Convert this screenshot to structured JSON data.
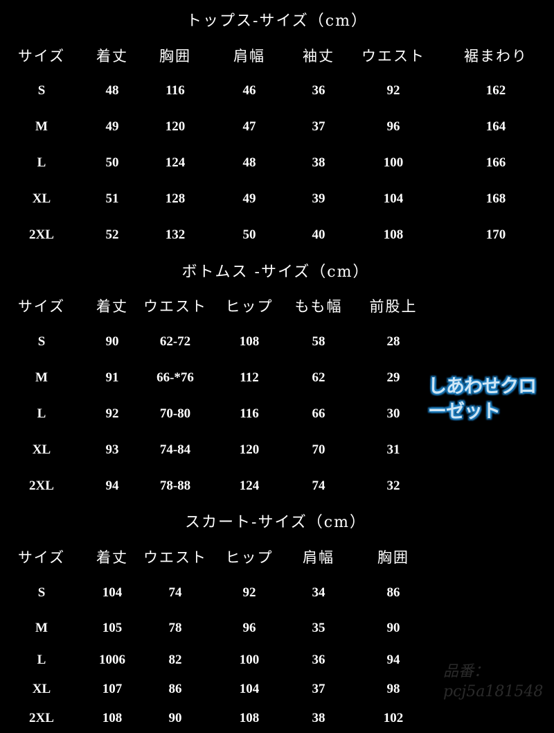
{
  "sections": [
    {
      "title": "トップス-サイズ（cm）",
      "headers": [
        "サイズ",
        "着丈",
        "胸囲",
        "肩幅",
        "袖丈",
        "ウエスト",
        "裾まわり"
      ],
      "rows": [
        [
          "S",
          "48",
          "116",
          "46",
          "36",
          "92",
          "162"
        ],
        [
          "M",
          "49",
          "120",
          "47",
          "37",
          "96",
          "164"
        ],
        [
          "L",
          "50",
          "124",
          "48",
          "38",
          "100",
          "166"
        ],
        [
          "XL",
          "51",
          "128",
          "49",
          "39",
          "104",
          "168"
        ],
        [
          "2XL",
          "52",
          "132",
          "50",
          "40",
          "108",
          "170"
        ]
      ]
    },
    {
      "title": "ボトムス -サイズ（cm）",
      "headers": [
        "サイズ",
        "着丈",
        "ウエスト",
        "ヒップ",
        "もも幅",
        "前股上"
      ],
      "rows": [
        [
          "S",
          "90",
          "62-72",
          "108",
          "58",
          "28"
        ],
        [
          "M",
          "91",
          "66-*76",
          "112",
          "62",
          "29"
        ],
        [
          "L",
          "92",
          "70-80",
          "116",
          "66",
          "30"
        ],
        [
          "XL",
          "93",
          "74-84",
          "120",
          "70",
          "31"
        ],
        [
          "2XL",
          "94",
          "78-88",
          "124",
          "74",
          "32"
        ]
      ]
    },
    {
      "title": "スカート-サイズ（cm）",
      "headers": [
        "サイズ",
        "着丈",
        "ウエスト",
        "ヒップ",
        "肩幅",
        "胸囲"
      ],
      "rows": [
        [
          "S",
          "104",
          "74",
          "92",
          "34",
          "86"
        ],
        [
          "M",
          "105",
          "78",
          "96",
          "35",
          "90"
        ],
        [
          "L",
          "1006",
          "82",
          "100",
          "36",
          "94"
        ],
        [
          "XL",
          "107",
          "86",
          "104",
          "37",
          "98"
        ],
        [
          "2XL",
          "108",
          "90",
          "108",
          "38",
          "102"
        ]
      ]
    }
  ],
  "brand_overlay": "しあわせクローゼット",
  "watermark": {
    "line1": "品番：",
    "line2": "pcj5a181548"
  },
  "colors": {
    "background": "#000000",
    "text": "#ffffff",
    "brand_outline": "#1f7fc0"
  }
}
